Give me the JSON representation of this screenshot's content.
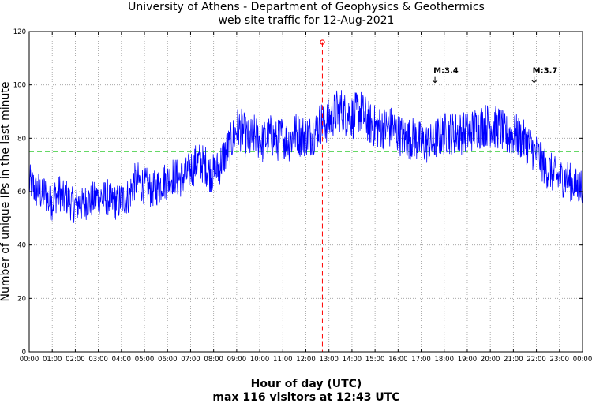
{
  "chart_data": {
    "type": "line",
    "title": "University of Athens - Department of Geophysics & Geothermics",
    "subtitle": "web site traffic for 12-Aug-2021",
    "xlabel": "Hour of day (UTC)",
    "xlabel_sub": "max 116 visitors at 12:43 UTC",
    "ylabel": "Number of unique IPs in the last minute",
    "xlim": [
      0,
      24
    ],
    "ylim": [
      0,
      120
    ],
    "grid": true,
    "x_ticks": [
      "00:00",
      "01:00",
      "02:00",
      "03:00",
      "04:00",
      "05:00",
      "06:00",
      "07:00",
      "08:00",
      "09:00",
      "10:00",
      "11:00",
      "12:00",
      "13:00",
      "14:00",
      "15:00",
      "16:00",
      "17:00",
      "18:00",
      "19:00",
      "20:00",
      "21:00",
      "22:00",
      "23:00",
      "00:00"
    ],
    "y_ticks": [
      0,
      20,
      40,
      60,
      80,
      100,
      120
    ],
    "reference_line": {
      "value": 75,
      "color": "#33cc33"
    },
    "max_marker": {
      "hour": 12.717,
      "value": 116,
      "color": "#ff0000"
    },
    "series": [
      {
        "name": "visitors",
        "color": "#0000ff",
        "values": [
          63,
          63,
          62,
          60,
          61,
          60,
          58,
          60,
          58,
          56,
          56,
          56,
          59,
          58,
          60,
          58,
          57,
          58,
          57,
          56,
          55,
          55,
          55,
          56,
          55,
          55,
          56,
          57,
          56,
          57,
          57,
          58,
          58,
          58,
          57,
          58,
          58,
          57,
          56,
          56,
          56,
          56,
          57,
          57,
          58,
          58,
          59,
          61,
          63,
          64,
          64,
          63,
          63,
          62,
          62,
          61,
          61,
          61,
          61,
          62,
          62,
          64,
          64,
          64,
          64,
          65,
          66,
          66,
          65,
          65,
          65,
          66,
          66,
          67,
          69,
          69,
          70,
          71,
          71,
          71,
          70,
          70,
          68,
          67,
          67,
          67,
          68,
          69,
          71,
          73,
          74,
          76,
          77,
          79,
          81,
          83,
          84,
          83,
          83,
          81,
          80,
          79,
          80,
          81,
          81,
          80,
          79,
          78,
          79,
          80,
          81,
          81,
          80,
          79,
          79,
          80,
          81,
          80,
          79,
          79,
          79,
          81,
          82,
          82,
          81,
          81,
          81,
          81,
          81,
          81,
          82,
          82,
          83,
          85,
          86,
          86,
          86,
          86,
          87,
          88,
          89,
          90,
          90,
          91,
          90,
          89,
          89,
          89,
          88,
          88,
          89,
          90,
          90,
          89,
          88,
          87,
          86,
          85,
          85,
          84,
          84,
          84,
          84,
          84,
          84,
          84,
          84,
          84,
          83,
          82,
          81,
          81,
          80,
          80,
          80,
          80,
          80,
          80,
          79,
          79,
          78,
          78,
          78,
          78,
          78,
          78,
          79,
          80,
          81,
          81,
          81,
          82,
          82,
          82,
          82,
          82,
          82,
          82,
          82,
          82,
          82,
          82,
          82,
          83,
          83,
          84,
          84,
          84,
          85,
          85,
          85,
          85,
          85,
          84,
          84,
          84,
          84,
          83,
          82,
          81,
          81,
          81,
          81,
          81,
          81,
          80,
          80,
          79,
          78,
          78,
          77,
          76,
          75,
          74,
          73,
          72,
          70,
          69,
          68,
          68,
          67,
          66,
          66,
          65,
          65,
          65,
          65,
          65,
          64,
          63,
          63,
          62,
          62,
          62,
          63
        ]
      }
    ],
    "annotations": [
      {
        "label": "M:3.4",
        "hour": 17.6
      },
      {
        "label": "M:3.7",
        "hour": 21.9
      }
    ]
  }
}
